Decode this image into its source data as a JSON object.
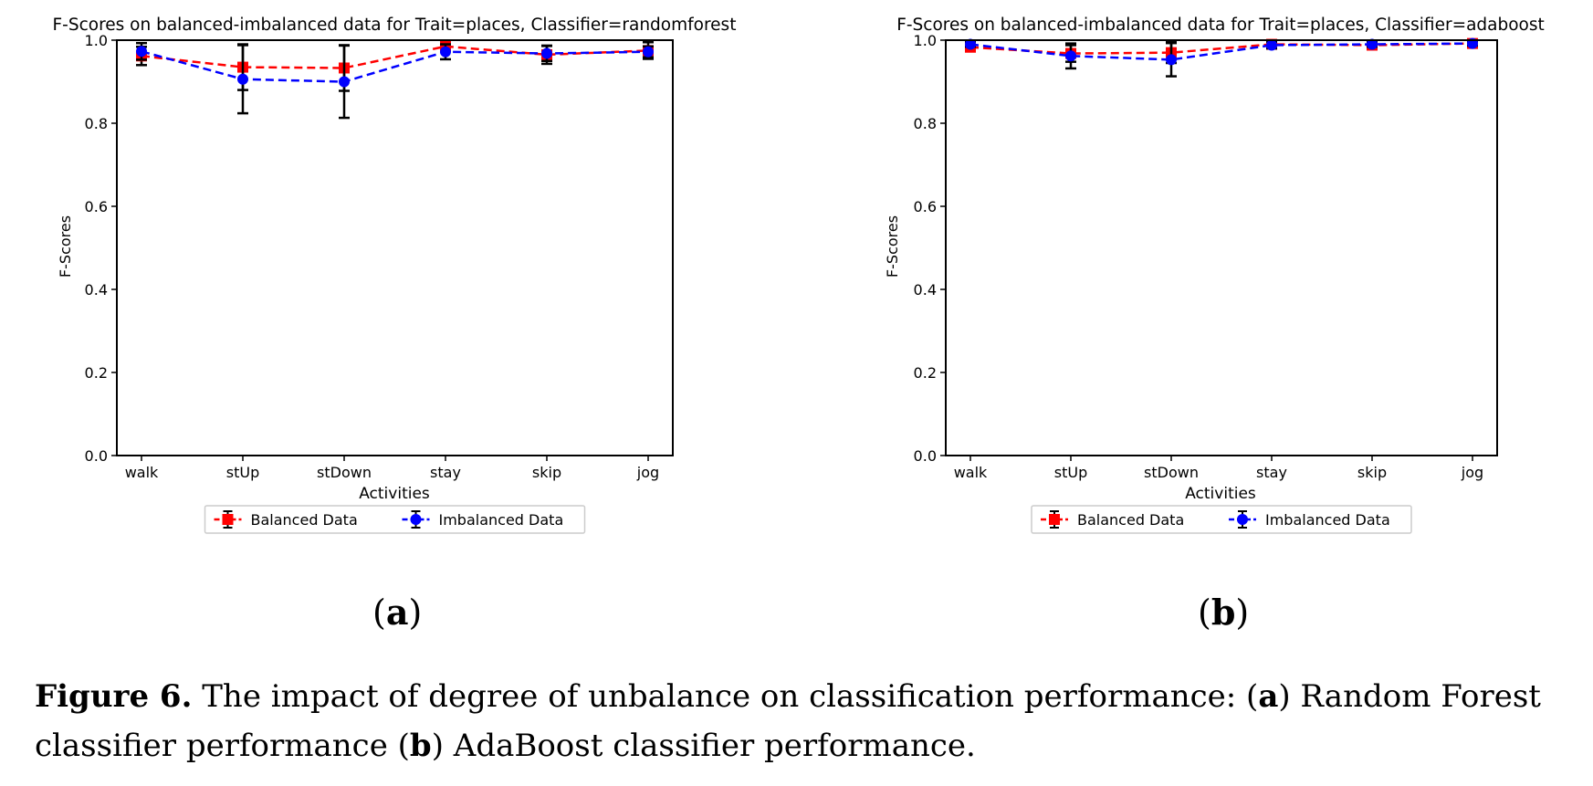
{
  "chart_data": [
    {
      "type": "line",
      "title": "F-Scores on balanced-imbalanced data for Trait=places, Classifier=randomforest",
      "xlabel": "Activities",
      "ylabel": "F-Scores",
      "ylim": [
        0.0,
        1.0
      ],
      "yticks": [
        "0.0",
        "0.2",
        "0.4",
        "0.6",
        "0.8",
        "1.0"
      ],
      "categories": [
        "walk",
        "stUp",
        "stDown",
        "stay",
        "skip",
        "jog"
      ],
      "legend_position": "below",
      "series": [
        {
          "name": "Balanced Data",
          "color": "#ff0000",
          "marker": "square",
          "values": [
            0.962,
            0.935,
            0.933,
            0.985,
            0.965,
            0.975
          ],
          "errors": [
            0.022,
            0.055,
            0.055,
            0.005,
            0.022,
            0.02
          ]
        },
        {
          "name": "Imbalanced Data",
          "color": "#0000ff",
          "marker": "circle",
          "values": [
            0.973,
            0.906,
            0.9,
            0.972,
            0.968,
            0.972
          ],
          "errors": [
            0.02,
            0.082,
            0.087,
            0.018,
            0.018,
            0.013
          ]
        }
      ]
    },
    {
      "type": "line",
      "title": "F-Scores on balanced-imbalanced data for Trait=places, Classifier=adaboost",
      "xlabel": "Activities",
      "ylabel": "F-Scores",
      "ylim": [
        0.0,
        1.0
      ],
      "yticks": [
        "0.0",
        "0.2",
        "0.4",
        "0.6",
        "0.8",
        "1.0"
      ],
      "categories": [
        "walk",
        "stUp",
        "stDown",
        "stay",
        "skip",
        "jog"
      ],
      "legend_position": "below",
      "series": [
        {
          "name": "Balanced Data",
          "color": "#ff0000",
          "marker": "square",
          "values": [
            0.983,
            0.968,
            0.97,
            0.99,
            0.988,
            0.992
          ],
          "errors": [
            0.008,
            0.02,
            0.025,
            0.006,
            0.007,
            0.005
          ]
        },
        {
          "name": "Imbalanced Data",
          "color": "#0000ff",
          "marker": "circle",
          "values": [
            0.99,
            0.962,
            0.953,
            0.988,
            0.99,
            0.992
          ],
          "errors": [
            0.006,
            0.03,
            0.04,
            0.008,
            0.006,
            0.005
          ]
        }
      ]
    }
  ],
  "panels": {
    "a": {
      "open": "(",
      "letter": "a",
      "close": ")"
    },
    "b": {
      "open": "(",
      "letter": "b",
      "close": ")"
    }
  },
  "caption": {
    "label": "Figure 6.",
    "text_1": " The impact of degree of unbalance on classification performance: (",
    "a": "a",
    "text_2": ") Random Forest classifier performance (",
    "b": "b",
    "text_3": ") AdaBoost classifier performance."
  }
}
